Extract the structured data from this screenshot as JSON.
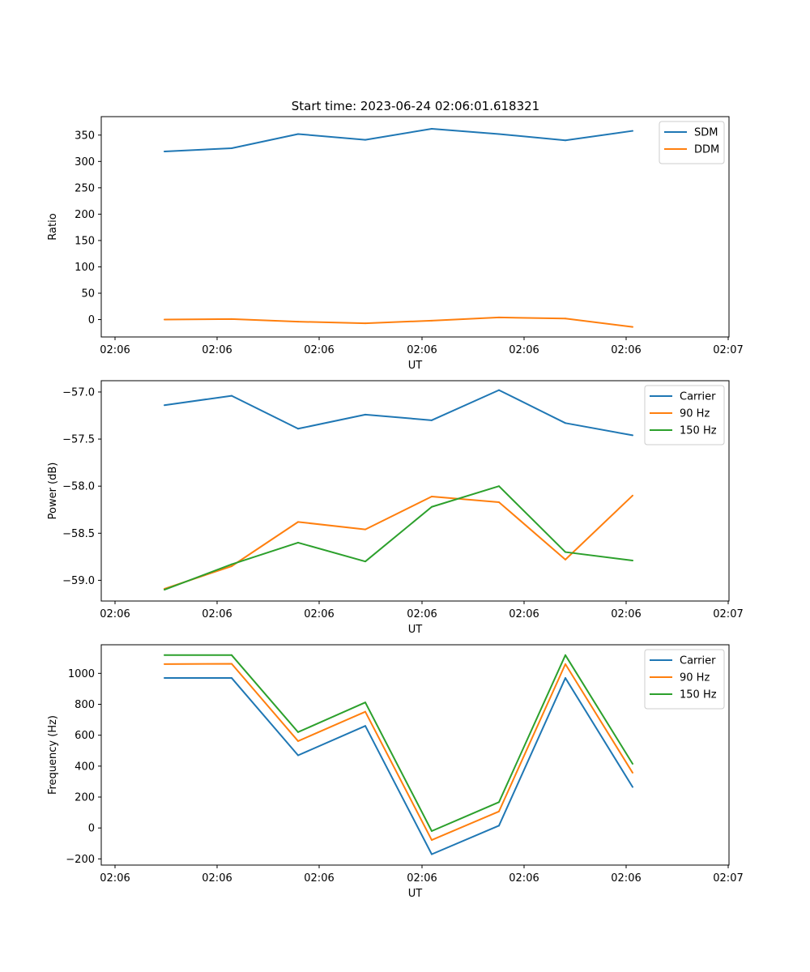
{
  "figure": {
    "title": "Start time: 2023-06-24 02:06:01.618321"
  },
  "colors": {
    "blue": "#1f77b4",
    "orange": "#ff7f0e",
    "green": "#2ca02c"
  },
  "chart_data": [
    {
      "type": "line",
      "title": "Start time: 2023-06-24 02:06:01.618321",
      "xlabel": "UT",
      "ylabel": "Ratio",
      "xticks": [
        "02:06",
        "02:06",
        "02:06",
        "02:06",
        "02:06",
        "02:06",
        "02:06",
        "02:07"
      ],
      "ylim": [
        -33,
        385
      ],
      "yticks": [
        0,
        50,
        100,
        150,
        200,
        250,
        300,
        350
      ],
      "grid": false,
      "legend": "top-right",
      "series": [
        {
          "name": "SDM",
          "color": "#1f77b4",
          "values": [
            319,
            325,
            352,
            341,
            362,
            352,
            340,
            358
          ]
        },
        {
          "name": "DDM",
          "color": "#ff7f0e",
          "values": [
            0,
            1,
            -4,
            -7,
            -2,
            4,
            2,
            -14
          ]
        }
      ]
    },
    {
      "type": "line",
      "title": "",
      "xlabel": "UT",
      "ylabel": "Power (dB)",
      "xticks": [
        "02:06",
        "02:06",
        "02:06",
        "02:06",
        "02:06",
        "02:06",
        "02:06",
        "02:07"
      ],
      "ylim": [
        -59.22,
        -56.88
      ],
      "yticks": [
        -59.0,
        -58.5,
        -58.0,
        -57.5,
        -57.0
      ],
      "yticklabels": [
        "−59.0",
        "−58.5",
        "−58.0",
        "−57.5",
        "−57.0"
      ],
      "grid": false,
      "legend": "top-right",
      "series": [
        {
          "name": "Carrier",
          "color": "#1f77b4",
          "values": [
            -57.14,
            -57.04,
            -57.39,
            -57.24,
            -57.3,
            -56.98,
            -57.33,
            -57.46
          ]
        },
        {
          "name": "90 Hz",
          "color": "#ff7f0e",
          "values": [
            -59.09,
            -58.85,
            -58.38,
            -58.46,
            -58.11,
            -58.17,
            -58.78,
            -58.1
          ]
        },
        {
          "name": "150 Hz",
          "color": "#2ca02c",
          "values": [
            -59.1,
            -58.83,
            -58.6,
            -58.8,
            -58.22,
            -58.0,
            -58.7,
            -58.79
          ]
        }
      ]
    },
    {
      "type": "line",
      "title": "",
      "xlabel": "UT",
      "ylabel": "Frequency (Hz)",
      "xticks": [
        "02:06",
        "02:06",
        "02:06",
        "02:06",
        "02:06",
        "02:06",
        "02:06",
        "02:07"
      ],
      "ylim": [
        -240,
        1185
      ],
      "yticks": [
        -200,
        0,
        200,
        400,
        600,
        800,
        1000
      ],
      "yticklabels": [
        "−200",
        "0",
        "200",
        "400",
        "600",
        "800",
        "1000"
      ],
      "grid": false,
      "legend": "top-right",
      "series": [
        {
          "name": "Carrier",
          "color": "#1f77b4",
          "values": [
            970,
            970,
            470,
            660,
            -170,
            15,
            970,
            265
          ]
        },
        {
          "name": "90 Hz",
          "color": "#ff7f0e",
          "values": [
            1060,
            1062,
            562,
            752,
            -78,
            107,
            1060,
            357
          ]
        },
        {
          "name": "150 Hz",
          "color": "#2ca02c",
          "values": [
            1118,
            1118,
            620,
            812,
            -20,
            167,
            1118,
            415
          ]
        }
      ]
    }
  ]
}
